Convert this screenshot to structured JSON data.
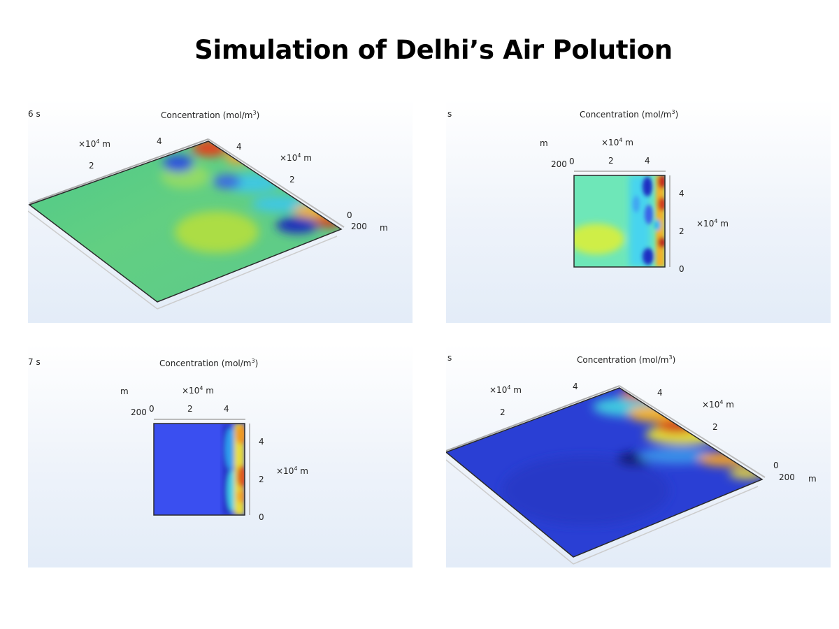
{
  "title": "Simulation of Delhi’s Air Polution",
  "colors": {
    "background": "#ffffff",
    "panel_top": "#ffffff",
    "panel_bottom": "#e3ecf8",
    "high": "#c0301e",
    "low": "#1a2f9e"
  },
  "panels": [
    {
      "time_label": "6 s",
      "plot_title": "Concentration (mol/m",
      "plot_title_sup": "3",
      "plot_title_end": ")",
      "view": "3D",
      "axis_unit_a": "×10",
      "axis_sup": "4",
      "axis_m": " m",
      "tick_2": "2",
      "tick_4": "4",
      "tick_4b": "4",
      "tick_2b": "2",
      "tick_0": "0",
      "tick_200": "200",
      "unit_m": "m"
    },
    {
      "time_label": "s",
      "plot_title": "Concentration (mol/m",
      "plot_title_sup": "3",
      "plot_title_end": ")",
      "view": "top",
      "axis_unit_a": "×10",
      "axis_sup": "4",
      "axis_m": " m",
      "unit_m": "m",
      "tick_200": "200",
      "tick_x0": "0",
      "tick_x2": "2",
      "tick_x4": "4",
      "tick_y4": "4",
      "tick_y2": "2",
      "tick_y0": "0"
    },
    {
      "time_label": "7 s",
      "plot_title": "Concentration (mol/m",
      "plot_title_sup": "3",
      "plot_title_end": ")",
      "view": "top",
      "axis_unit_a": "×10",
      "axis_sup": "4",
      "axis_m": " m",
      "unit_m": "m",
      "tick_200": "200",
      "tick_x0": "0",
      "tick_x2": "2",
      "tick_x4": "4",
      "tick_y4": "4",
      "tick_y2": "2",
      "tick_y0": "0"
    },
    {
      "time_label": "s",
      "plot_title": "Concentration (mol/m",
      "plot_title_sup": "3",
      "plot_title_end": ")",
      "view": "3D",
      "axis_unit_a": "×10",
      "axis_sup": "4",
      "axis_m": " m",
      "tick_2": "2",
      "tick_4": "4",
      "tick_4b": "4",
      "tick_2b": "2",
      "tick_0": "0",
      "tick_200": "200",
      "unit_m": "m"
    }
  ]
}
